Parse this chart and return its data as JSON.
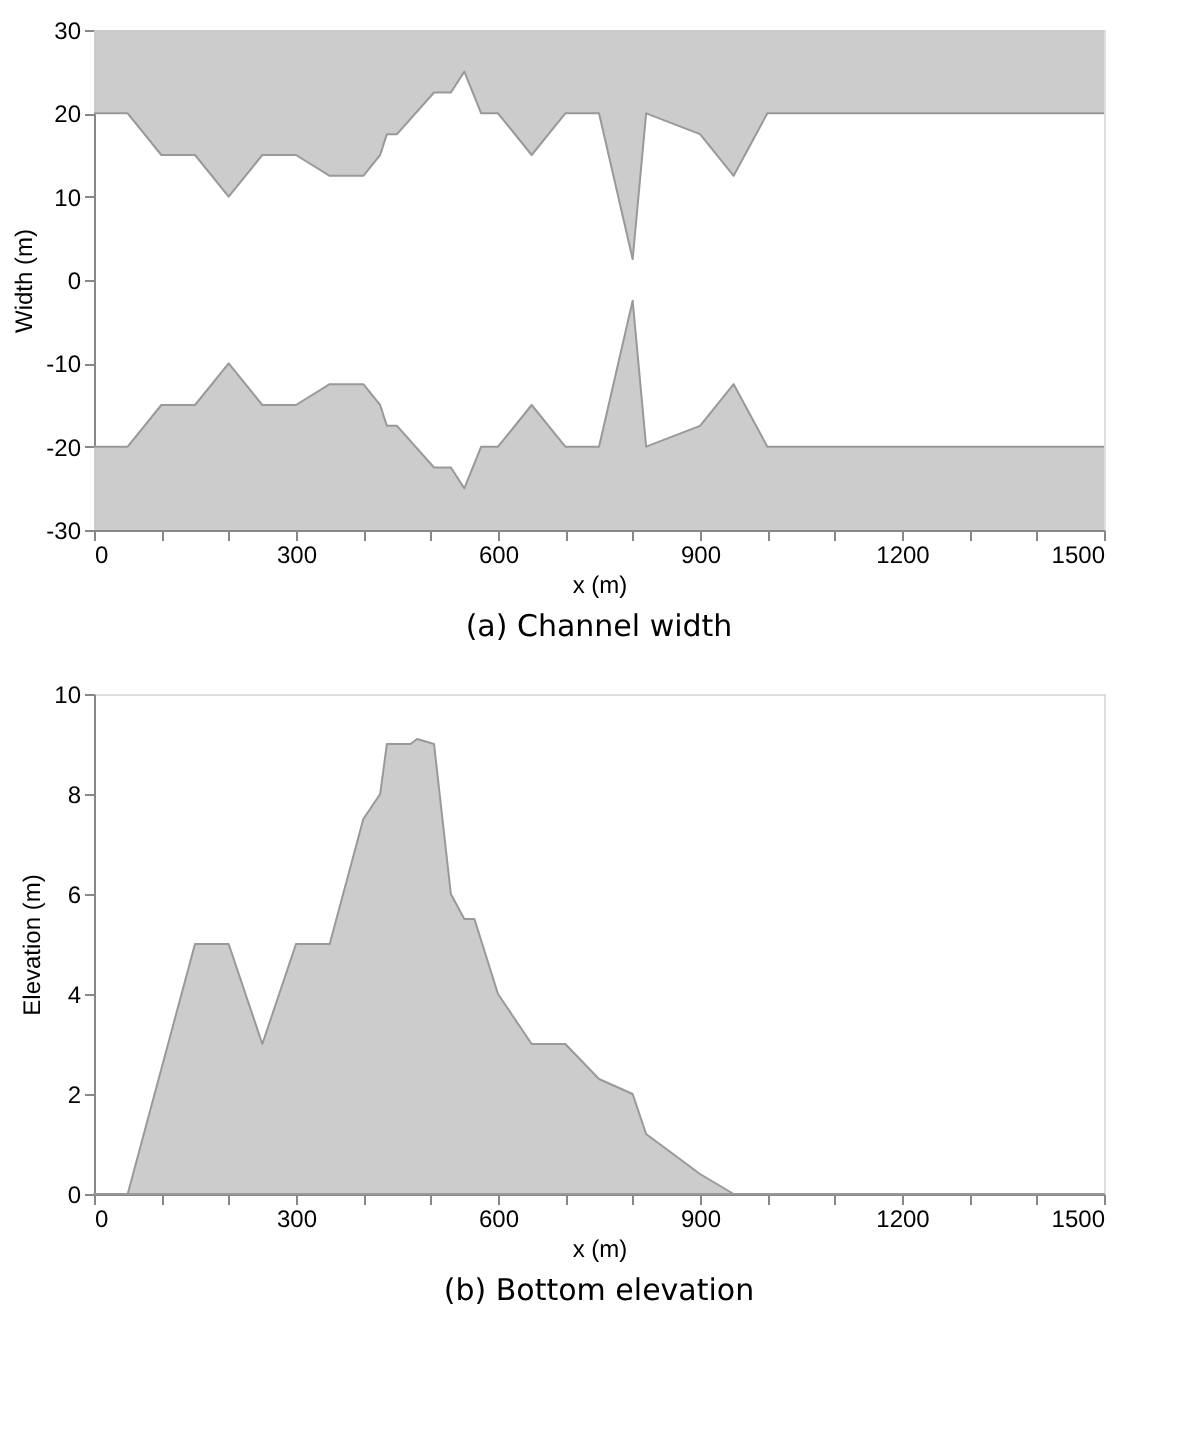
{
  "chart_data": [
    {
      "type": "line",
      "title": "(a) Channel width",
      "xlabel": "x (m)",
      "ylabel": "Width (m)",
      "grid": false,
      "xlim": [
        0,
        1500
      ],
      "ylim": [
        -30,
        30
      ],
      "xticks": [
        0,
        {
          "value": 100,
          "label": null
        },
        {
          "value": 200,
          "label": null
        },
        300,
        {
          "value": 400,
          "label": null
        },
        {
          "value": 500,
          "label": null
        },
        600,
        {
          "value": 700,
          "label": null
        },
        {
          "value": 800,
          "label": null
        },
        900,
        {
          "value": 1000,
          "label": null
        },
        {
          "value": 1100,
          "label": null
        },
        1200,
        {
          "value": 1300,
          "label": null
        },
        {
          "value": 1400,
          "label": null
        },
        1500
      ],
      "yticks": [
        -30,
        -20,
        -10,
        0,
        10,
        20,
        30
      ],
      "x": [
        0,
        50,
        100,
        150,
        200,
        250,
        300,
        350,
        400,
        425,
        435,
        450,
        505,
        530,
        550,
        575,
        600,
        650,
        700,
        750,
        800,
        820,
        900,
        950,
        1000,
        1500
      ],
      "series": [
        {
          "color": "#999999",
          "values": [
            20,
            20,
            15,
            15,
            10,
            15,
            15,
            12.5,
            12.5,
            15,
            17.5,
            17.5,
            22.5,
            22.5,
            25,
            20,
            20,
            15,
            20,
            20,
            2.5,
            20,
            17.5,
            12.5,
            20,
            20
          ],
          "lower": [
            20,
            20,
            15,
            15,
            10,
            15,
            15,
            12.5,
            12.5,
            15,
            17.5,
            17.5,
            22.5,
            22.5,
            25,
            20,
            20,
            15,
            20,
            20,
            2.5,
            20,
            17.5,
            12.5,
            20,
            20
          ],
          "upper": [
            30,
            30,
            30,
            30,
            30,
            30,
            30,
            30,
            30,
            30,
            30,
            30,
            30,
            30,
            30,
            30,
            30,
            30,
            30,
            30,
            30,
            30,
            30,
            30,
            30,
            30
          ]
        },
        {
          "color": "#999999",
          "values": [
            -20,
            -20,
            -15,
            -15,
            -10,
            -15,
            -15,
            -12.5,
            -12.5,
            -15,
            -17.5,
            -17.5,
            -22.5,
            -22.5,
            -25,
            -20,
            -20,
            -15,
            -20,
            -20,
            -2.5,
            -20,
            -17.5,
            -12.5,
            -20,
            -20
          ],
          "upper": [
            -20,
            -20,
            -15,
            -15,
            -10,
            -15,
            -15,
            -12.5,
            -12.5,
            -15,
            -17.5,
            -17.5,
            -22.5,
            -22.5,
            -25,
            -20,
            -20,
            -15,
            -20,
            -20,
            -2.5,
            -20,
            -17.5,
            -12.5,
            -20,
            -20
          ],
          "lower": [
            -30,
            -30,
            -30,
            -30,
            -30,
            -30,
            -30,
            -30,
            -30,
            -30,
            -30,
            -30,
            -30,
            -30,
            -30,
            -30,
            -30,
            -30,
            -30,
            -30,
            -30,
            -30,
            -30,
            -30,
            -30,
            -30
          ]
        }
      ]
    },
    {
      "type": "area",
      "title": "(b) Bottom elevation",
      "xlabel": "x (m)",
      "ylabel": "Elevation (m)",
      "grid": false,
      "xlim": [
        0,
        1500
      ],
      "ylim": [
        0,
        10
      ],
      "xticks": [
        0,
        {
          "value": 100,
          "label": null
        },
        {
          "value": 200,
          "label": null
        },
        300,
        {
          "value": 400,
          "label": null
        },
        {
          "value": 500,
          "label": null
        },
        600,
        {
          "value": 700,
          "label": null
        },
        {
          "value": 800,
          "label": null
        },
        900,
        {
          "value": 1000,
          "label": null
        },
        {
          "value": 1100,
          "label": null
        },
        1200,
        {
          "value": 1300,
          "label": null
        },
        {
          "value": 1400,
          "label": null
        },
        1500
      ],
      "yticks": [
        0,
        2,
        4,
        6,
        8,
        10
      ],
      "x": [
        0,
        50,
        150,
        200,
        250,
        300,
        350,
        400,
        425,
        435,
        470,
        480,
        505,
        530,
        550,
        565,
        600,
        650,
        700,
        750,
        800,
        820,
        900,
        950,
        1500
      ],
      "series": [
        {
          "color": "#cccccc",
          "values": [
            0,
            0,
            5,
            5,
            3,
            5,
            5,
            7.5,
            8,
            9,
            9,
            9.1,
            9,
            6,
            5.5,
            5.5,
            4,
            3,
            3,
            2.3,
            2,
            1.2,
            0.4,
            0,
            0
          ]
        }
      ]
    }
  ]
}
